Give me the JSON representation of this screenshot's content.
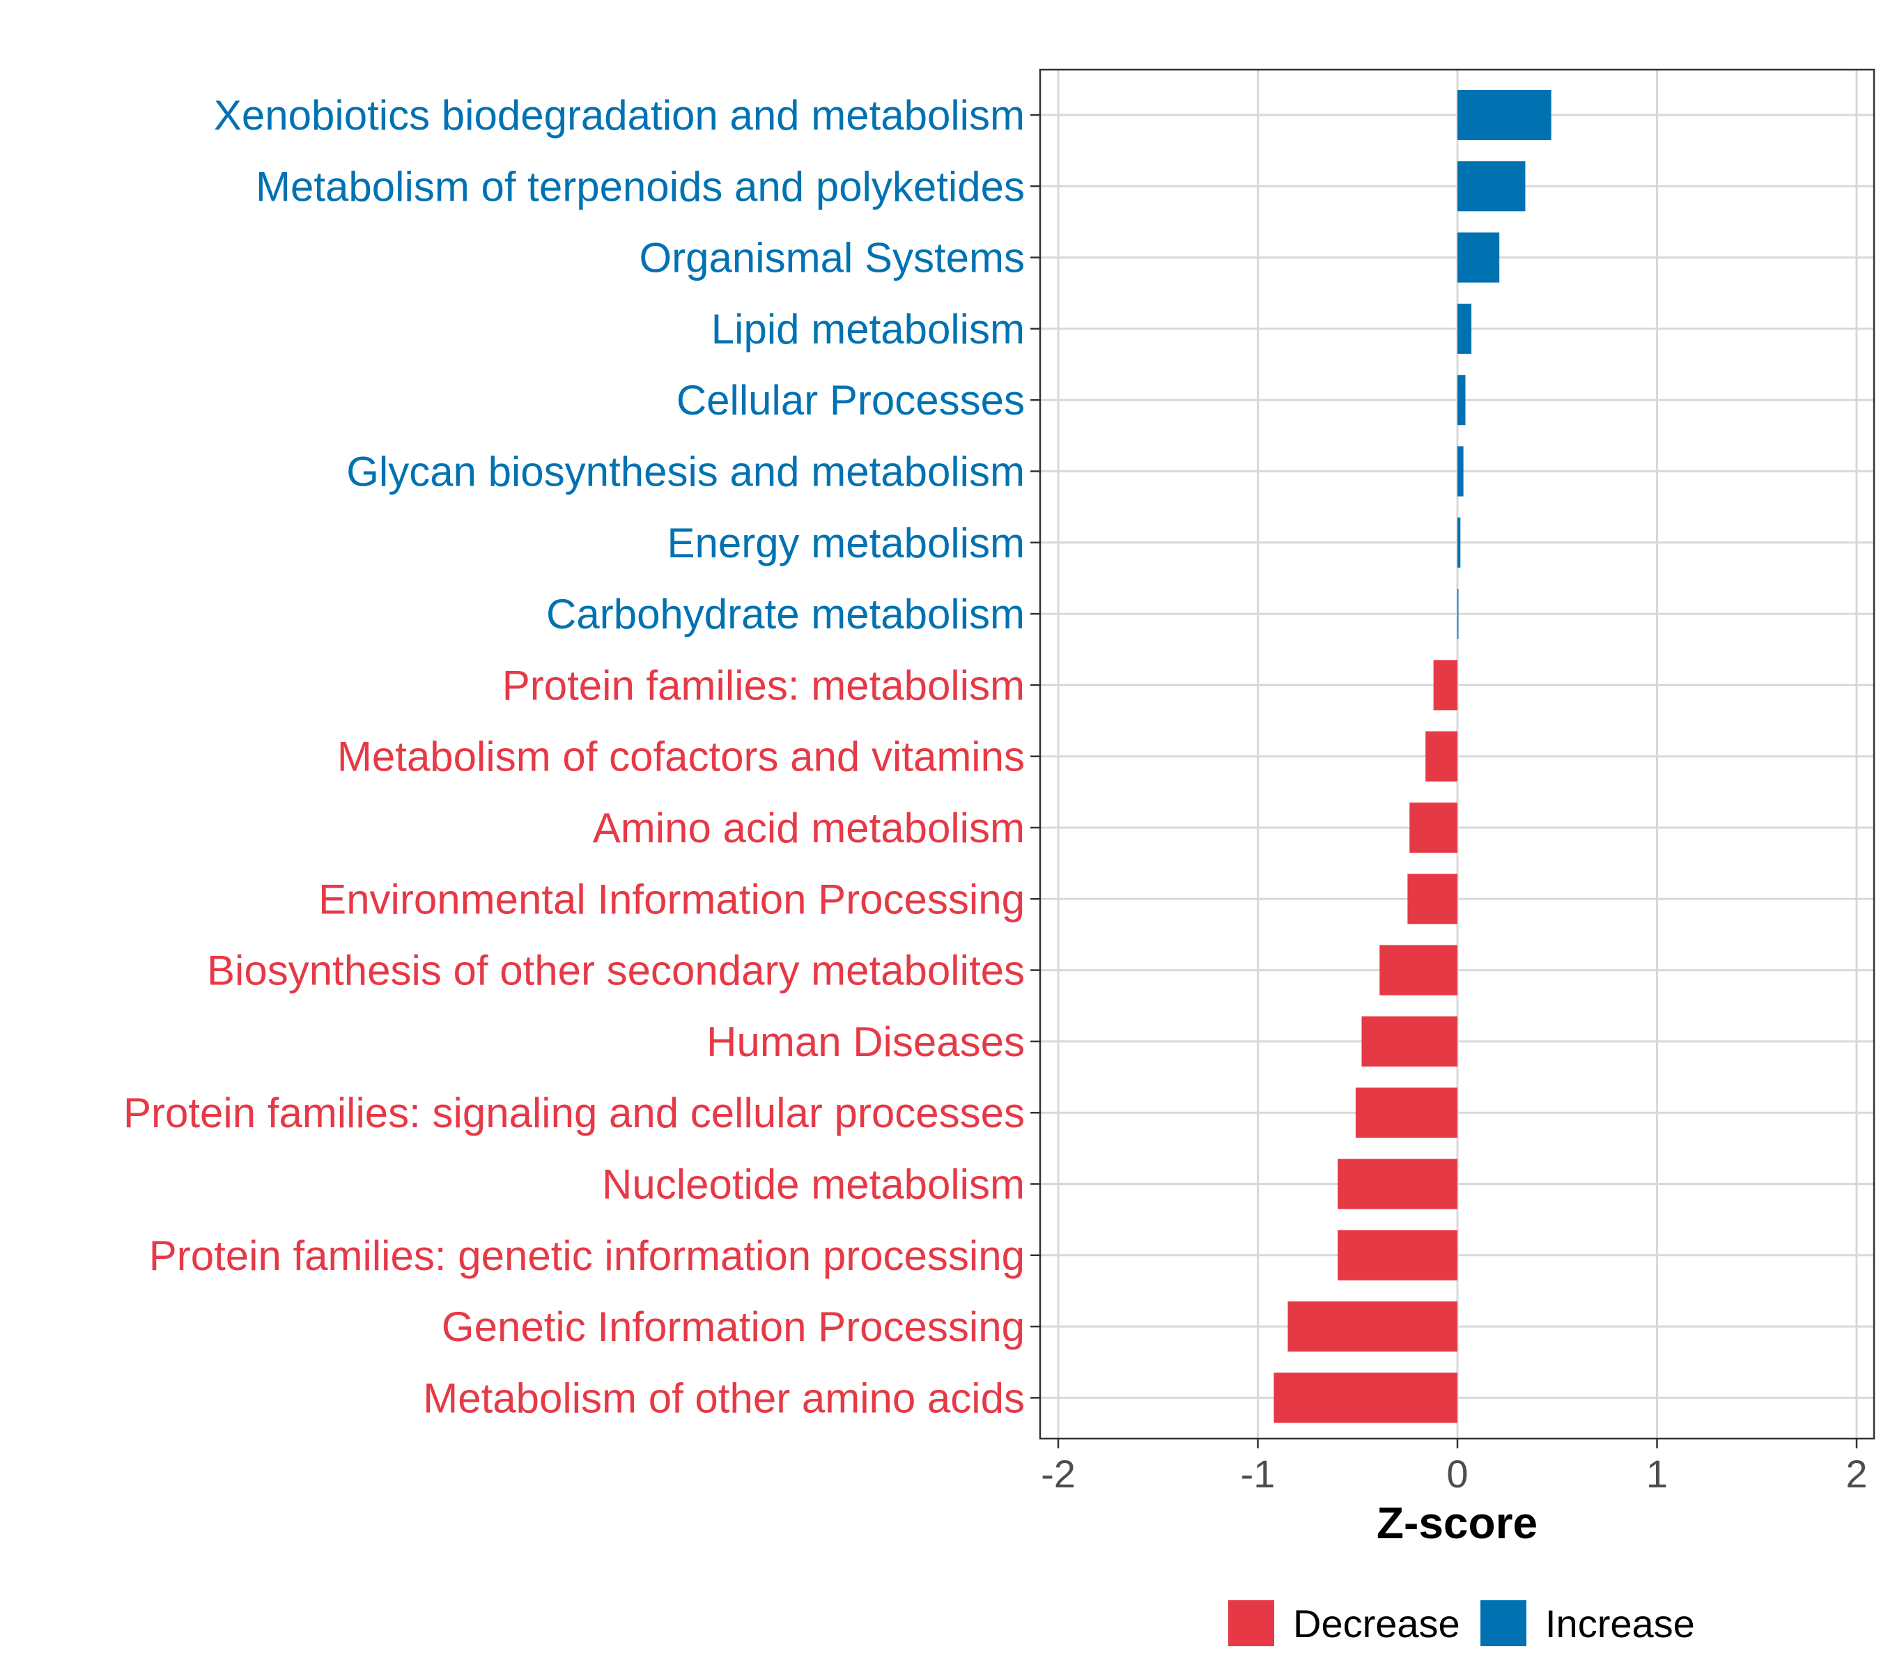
{
  "chart_data": {
    "type": "bar",
    "orientation": "horizontal",
    "xlabel": "Z-score",
    "xlim": [
      -2.0,
      2.0
    ],
    "xticks": [
      -2,
      -1,
      0,
      1,
      2
    ],
    "xtick_labels": [
      "-2",
      "-1",
      "0",
      "1",
      "2"
    ],
    "grid": true,
    "legend_position": "bottom",
    "colors": {
      "Increase": "#0072b2",
      "Decrease": "#e63946"
    },
    "legend": [
      {
        "name": "Decrease",
        "color": "#e63946"
      },
      {
        "name": "Increase",
        "color": "#0072b2"
      }
    ],
    "categories": [
      "Xenobiotics biodegradation and metabolism",
      "Metabolism of terpenoids and polyketides",
      "Organismal Systems",
      "Lipid metabolism",
      "Cellular Processes",
      "Glycan biosynthesis and metabolism",
      "Energy metabolism",
      "Carbohydrate metabolism",
      "Protein families: metabolism",
      "Metabolism of cofactors and vitamins",
      "Amino acid metabolism",
      "Environmental Information Processing",
      "Biosynthesis of other secondary metabolites",
      "Human Diseases",
      "Protein families: signaling and cellular processes",
      "Nucleotide metabolism",
      "Protein families: genetic information processing",
      "Genetic Information Processing",
      "Metabolism of other amino acids"
    ],
    "values": [
      0.47,
      0.34,
      0.21,
      0.07,
      0.04,
      0.03,
      0.015,
      0.005,
      -0.12,
      -0.16,
      -0.24,
      -0.25,
      -0.39,
      -0.48,
      -0.51,
      -0.6,
      -0.6,
      -0.85,
      -0.92
    ],
    "direction": [
      "Increase",
      "Increase",
      "Increase",
      "Increase",
      "Increase",
      "Increase",
      "Increase",
      "Increase",
      "Decrease",
      "Decrease",
      "Decrease",
      "Decrease",
      "Decrease",
      "Decrease",
      "Decrease",
      "Decrease",
      "Decrease",
      "Decrease",
      "Decrease"
    ]
  }
}
